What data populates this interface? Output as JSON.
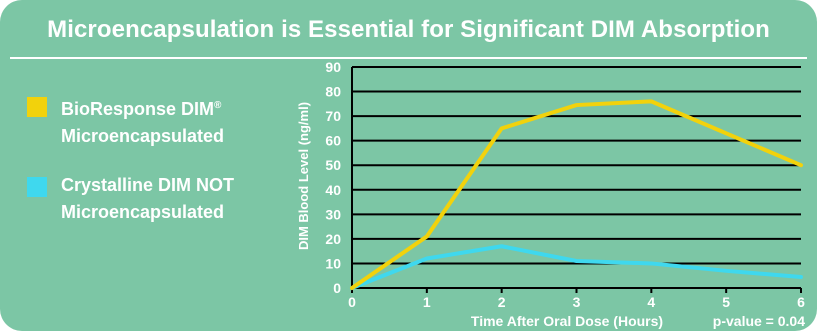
{
  "title": "Microencapsulation is Essential for Significant DIM Absorption",
  "legend": [
    {
      "name_line1": "BioResponse DIM",
      "trademark": "®",
      "name_line2": "Microencapsulated",
      "color": "#f2d20c"
    },
    {
      "name_line1": "Crystalline DIM NOT",
      "name_line2": "Microencapsulated",
      "color": "#3fd8ee"
    }
  ],
  "p_value": "p-value = 0.04",
  "chart_data": {
    "type": "line",
    "xlabel": "Time After Oral Dose (Hours)",
    "ylabel": "DIM Blood Level (ng/ml)",
    "x": [
      0,
      1,
      2,
      3,
      4,
      5,
      6
    ],
    "xlim": [
      0,
      6
    ],
    "ylim": [
      0,
      90
    ],
    "y_ticks": [
      0,
      10,
      20,
      30,
      40,
      50,
      60,
      70,
      80,
      90
    ],
    "grid": "horizontal",
    "legend_position": "left",
    "series": [
      {
        "name": "BioResponse DIM® Microencapsulated",
        "color": "#f2d20c",
        "values": [
          0,
          21,
          65,
          74.5,
          76,
          63,
          50
        ]
      },
      {
        "name": "Crystalline DIM NOT Microencapsulated",
        "color": "#3fd8ee",
        "values": [
          0,
          12,
          17,
          11,
          10,
          7,
          4.5
        ]
      }
    ]
  }
}
